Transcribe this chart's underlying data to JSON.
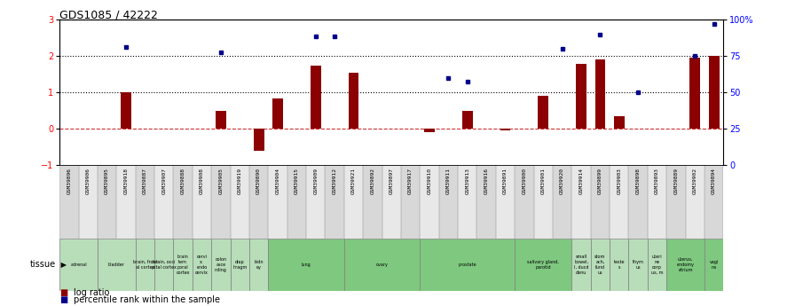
{
  "title": "GDS1085 / 42222",
  "gsm_labels": [
    "GSM39896",
    "GSM39906",
    "GSM39895",
    "GSM39918",
    "GSM39887",
    "GSM39907",
    "GSM39888",
    "GSM39908",
    "GSM39905",
    "GSM39919",
    "GSM39890",
    "GSM39904",
    "GSM39915",
    "GSM39909",
    "GSM39912",
    "GSM39921",
    "GSM39892",
    "GSM39897",
    "GSM39917",
    "GSM39910",
    "GSM39911",
    "GSM39913",
    "GSM39916",
    "GSM39891",
    "GSM39900",
    "GSM39901",
    "GSM39920",
    "GSM39914",
    "GSM39899",
    "GSM39903",
    "GSM39898",
    "GSM39893",
    "GSM39889",
    "GSM39902",
    "GSM39894"
  ],
  "log_ratio": [
    0.0,
    0.0,
    0.0,
    1.0,
    0.0,
    0.0,
    0.0,
    0.0,
    0.5,
    0.0,
    -0.6,
    0.85,
    0.0,
    1.75,
    0.0,
    1.55,
    0.0,
    0.0,
    0.0,
    -0.1,
    0.0,
    0.5,
    0.0,
    -0.05,
    0.0,
    0.9,
    0.0,
    1.8,
    1.9,
    0.35,
    0.0,
    0.0,
    0.0,
    1.95,
    2.0
  ],
  "blue_dot_indices": [
    3,
    8,
    13,
    14,
    20,
    21,
    26,
    28,
    30,
    33,
    34
  ],
  "blue_dot_values": [
    2.25,
    2.1,
    2.55,
    2.55,
    1.4,
    1.3,
    2.2,
    2.6,
    1.0,
    2.0,
    2.9
  ],
  "tissues": [
    {
      "label": "adrenal",
      "start": 0,
      "end": 2,
      "color": "#b8ddb9"
    },
    {
      "label": "bladder",
      "start": 2,
      "end": 4,
      "color": "#b8ddb9"
    },
    {
      "label": "brain, front\nal cortex",
      "start": 4,
      "end": 5,
      "color": "#b8ddb9"
    },
    {
      "label": "brain, occi\npital cortex",
      "start": 5,
      "end": 6,
      "color": "#b8ddb9"
    },
    {
      "label": "brain\ntem\nporal\ncortex",
      "start": 6,
      "end": 7,
      "color": "#b8ddb9"
    },
    {
      "label": "cervi\nx,\nendo\ncervix",
      "start": 7,
      "end": 8,
      "color": "#b8ddb9"
    },
    {
      "label": "colon\nasce\nnding",
      "start": 8,
      "end": 9,
      "color": "#b8ddb9"
    },
    {
      "label": "diap\nhragm",
      "start": 9,
      "end": 10,
      "color": "#b8ddb9"
    },
    {
      "label": "kidn\ney",
      "start": 10,
      "end": 11,
      "color": "#b8ddb9"
    },
    {
      "label": "lung",
      "start": 11,
      "end": 15,
      "color": "#7ec87f"
    },
    {
      "label": "ovary",
      "start": 15,
      "end": 19,
      "color": "#7ec87f"
    },
    {
      "label": "prostate",
      "start": 19,
      "end": 24,
      "color": "#7ec87f"
    },
    {
      "label": "salivary gland,\nparotid",
      "start": 24,
      "end": 27,
      "color": "#7ec87f"
    },
    {
      "label": "small\nbowel,\nI, ducd\ndenu",
      "start": 27,
      "end": 28,
      "color": "#b8ddb9"
    },
    {
      "label": "stom\nach,\nfund\nus",
      "start": 28,
      "end": 29,
      "color": "#b8ddb9"
    },
    {
      "label": "teste\ns",
      "start": 29,
      "end": 30,
      "color": "#b8ddb9"
    },
    {
      "label": "thym\nus",
      "start": 30,
      "end": 31,
      "color": "#b8ddb9"
    },
    {
      "label": "uteri\nne\ncorp\nus, m",
      "start": 31,
      "end": 32,
      "color": "#b8ddb9"
    },
    {
      "label": "uterus,\nendomy\netrium",
      "start": 32,
      "end": 34,
      "color": "#7ec87f"
    },
    {
      "label": "vagi\nna",
      "start": 34,
      "end": 35,
      "color": "#7ec87f"
    }
  ],
  "ylim_left": [
    -1.0,
    3.0
  ],
  "yticks_left": [
    -1,
    0,
    1,
    2,
    3
  ],
  "ytick_right_vals": [
    0,
    25,
    50,
    75,
    100
  ],
  "ytick_right_labels": [
    "0",
    "25",
    "50",
    "75",
    "100%"
  ],
  "bar_color": "#8B0000",
  "dot_color": "#00008B",
  "hline0_color": "#cc3333",
  "dotline_color": "black",
  "legend_bar_label": "log ratio",
  "legend_dot_label": "percentile rank within the sample",
  "tissue_label": "tissue"
}
